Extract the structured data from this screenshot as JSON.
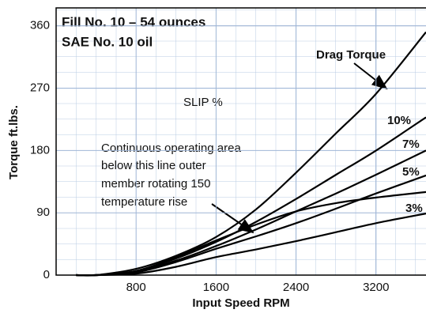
{
  "chart_data": {
    "type": "line",
    "title": [
      "Fill No. 10 – 54 ounces",
      "SAE No. 10 oil"
    ],
    "x_label": "Input Speed RPM",
    "y_label": "Torque ft.lbs.",
    "annotations": {
      "slip": "SLIP %",
      "continuous": [
        "Continuous operating area",
        "below this line outer",
        "member rotating 150",
        "temperature rise"
      ]
    },
    "x": [
      200,
      400,
      800,
      1200,
      1600,
      2000,
      2400,
      2800,
      3200,
      3700
    ],
    "series": [
      {
        "name": "Drag Torque",
        "color": "#000000",
        "values": [
          0,
          0,
          9,
          28,
          55,
          95,
          148,
          205,
          262,
          351
        ]
      },
      {
        "name": "10%",
        "color": "#000000",
        "values": [
          0,
          0,
          6,
          24,
          48,
          77,
          110,
          145,
          180,
          228
        ]
      },
      {
        "name": "7%",
        "color": "#000000",
        "values": [
          0,
          0,
          5,
          21,
          42,
          66,
          92,
          118,
          145,
          180
        ]
      },
      {
        "name": "5%",
        "color": "#000000",
        "values": [
          0,
          0,
          4,
          19,
          38,
          56,
          75,
          96,
          118,
          144
        ]
      },
      {
        "color": "#000000",
        "values": [
          0,
          0,
          6,
          26,
          50,
          73,
          92,
          104,
          112,
          120
        ]
      },
      {
        "name": "3%",
        "color": "#000000",
        "values": [
          0,
          0,
          2,
          12,
          26,
          37,
          49,
          62,
          75,
          89
        ]
      }
    ],
    "xlim": [
      0,
      3700
    ],
    "ylim": [
      0,
      386
    ],
    "xticks": [
      800,
      1600,
      2400,
      3200
    ],
    "yticks": [
      0,
      90,
      180,
      270,
      360
    ],
    "grid": true
  }
}
